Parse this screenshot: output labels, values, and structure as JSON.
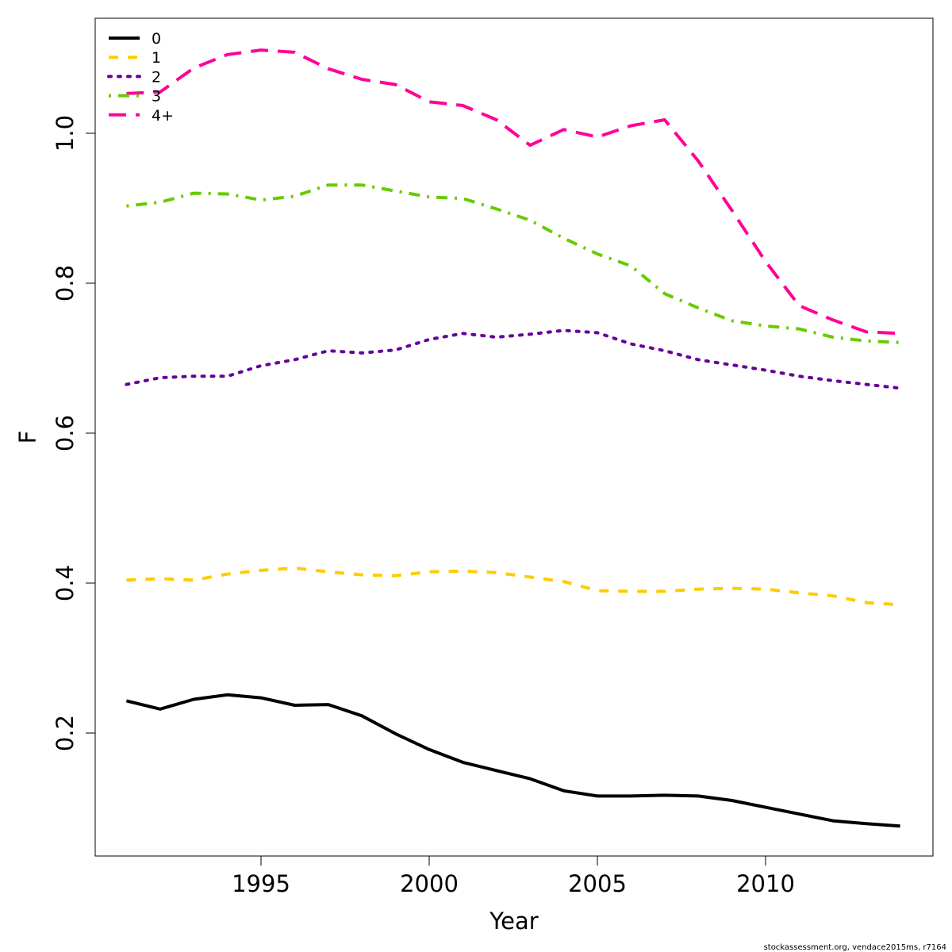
{
  "chart_data": {
    "type": "line",
    "title": "",
    "xlabel": "Year",
    "ylabel": "F",
    "xlim": [
      1990,
      2015
    ],
    "ylim": [
      0.05,
      1.13
    ],
    "grid": false,
    "legend_position": "top-left",
    "x_ticks": [
      1995,
      2000,
      2005,
      2010
    ],
    "x_tick_labels": [
      "1995",
      "2000",
      "2005",
      "2010"
    ],
    "y_ticks": [
      0.2,
      0.4,
      0.6,
      0.8,
      1.0
    ],
    "y_tick_labels": [
      "0.2",
      "0.4",
      "0.6",
      "0.8",
      "1.0"
    ],
    "x": [
      1991,
      1992,
      1993,
      1994,
      1995,
      1996,
      1997,
      1998,
      1999,
      2000,
      2001,
      2002,
      2003,
      2004,
      2005,
      2006,
      2007,
      2008,
      2009,
      2010,
      2011,
      2012,
      2013,
      2014
    ],
    "series": [
      {
        "name": "0",
        "color": "#000000",
        "dash": "solid",
        "values": [
          0.243,
          0.232,
          0.245,
          0.251,
          0.247,
          0.237,
          0.238,
          0.223,
          0.199,
          0.178,
          0.161,
          0.15,
          0.139,
          0.123,
          0.116,
          0.116,
          0.117,
          0.116,
          0.11,
          0.101,
          0.092,
          0.083,
          0.079,
          0.076
        ]
      },
      {
        "name": "1",
        "color": "#FFCC00",
        "dash": "dashed",
        "values": [
          0.404,
          0.406,
          0.404,
          0.412,
          0.417,
          0.42,
          0.415,
          0.411,
          0.41,
          0.415,
          0.416,
          0.414,
          0.408,
          0.402,
          0.39,
          0.389,
          0.389,
          0.392,
          0.393,
          0.392,
          0.387,
          0.383,
          0.374,
          0.371
        ]
      },
      {
        "name": "2",
        "color": "#660099",
        "dash": "dotted",
        "values": [
          0.665,
          0.674,
          0.676,
          0.676,
          0.69,
          0.698,
          0.71,
          0.707,
          0.711,
          0.725,
          0.733,
          0.728,
          0.732,
          0.737,
          0.734,
          0.719,
          0.71,
          0.698,
          0.691,
          0.684,
          0.676,
          0.67,
          0.665,
          0.66
        ]
      },
      {
        "name": "3",
        "color": "#66CC00",
        "dash": "dotdash",
        "values": [
          0.903,
          0.908,
          0.92,
          0.919,
          0.911,
          0.916,
          0.931,
          0.931,
          0.923,
          0.915,
          0.913,
          0.899,
          0.884,
          0.86,
          0.839,
          0.823,
          0.786,
          0.767,
          0.75,
          0.743,
          0.739,
          0.728,
          0.723,
          0.721
        ]
      },
      {
        "name": "4+",
        "color": "#FF0099",
        "dash": "longdash",
        "values": [
          1.053,
          1.055,
          1.087,
          1.105,
          1.111,
          1.108,
          1.086,
          1.072,
          1.065,
          1.042,
          1.037,
          1.018,
          0.984,
          1.005,
          0.995,
          1.01,
          1.018,
          0.963,
          0.897,
          0.829,
          0.77,
          0.751,
          0.735,
          0.733
        ]
      }
    ]
  },
  "footer": "stockassessment.org, vendace2015ms, r7164"
}
